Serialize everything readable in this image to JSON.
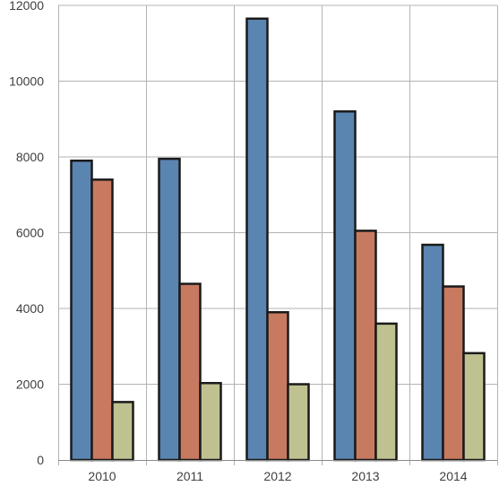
{
  "chart_data": {
    "type": "bar",
    "title": "",
    "xlabel": "",
    "ylabel": "",
    "categories": [
      "2010",
      "2011",
      "2012",
      "2013",
      "2014"
    ],
    "ylim": [
      0,
      12000
    ],
    "yticks": [
      0,
      2000,
      4000,
      6000,
      8000,
      10000,
      12000
    ],
    "grid": true,
    "legend": "none",
    "series": [
      {
        "color": "#5b85b1",
        "values": [
          7900,
          7950,
          11650,
          9200,
          5680
        ]
      },
      {
        "color": "#c87a60",
        "values": [
          7400,
          4650,
          3900,
          6050,
          4580
        ]
      },
      {
        "color": "#bfc191",
        "values": [
          1530,
          2030,
          2000,
          3600,
          2820
        ]
      }
    ]
  }
}
